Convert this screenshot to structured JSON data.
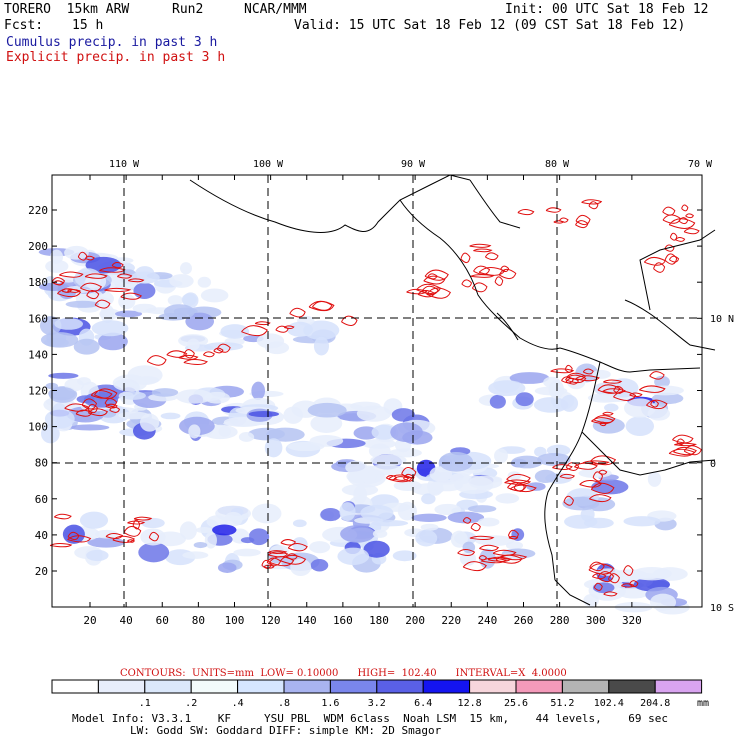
{
  "header": {
    "model": "TORERO  15km ARW",
    "run": "Run2",
    "org": "NCAR/MMM",
    "init": "Init: 00 UTC Sat 18 Feb 12",
    "fcst_label": "Fcst:",
    "fcst_value": "15 h",
    "valid": "Valid: 15 UTC Sat 18 Feb 12 (09 CST Sat 18 Feb 12)",
    "cumulus": "Cumulus precip. in past 3 h",
    "explicit": "Explicit precip. in past 3 h"
  },
  "map": {
    "lon_labels": [
      "110 W",
      "100 W",
      "90 W",
      "80 W",
      "70 W"
    ],
    "lat_labels": [
      "10 N",
      "0",
      "10 S"
    ],
    "x_ticks": [
      "20",
      "40",
      "60",
      "80",
      "100",
      "120",
      "140",
      "160",
      "180",
      "200",
      "220",
      "240",
      "260",
      "280",
      "300",
      "320"
    ],
    "y_ticks": [
      "20",
      "40",
      "60",
      "80",
      "100",
      "120",
      "140",
      "160",
      "180",
      "200",
      "220"
    ]
  },
  "contours": {
    "text": "CONTOURS:  UNITS=mm  LOW= 0.10000      HIGH=  102.40      INTERVAL=X  4.0000"
  },
  "legend": {
    "labels": [
      ".1",
      ".2",
      ".4",
      ".8",
      "1.6",
      "3.2",
      "6.4",
      "12.8",
      "25.6",
      "51.2",
      "102.4",
      "204.8"
    ],
    "unit": "mm",
    "colors": [
      "#ffffff",
      "#e8eefc",
      "#dbe8fb",
      "#f3fbfb",
      "#d6e6ff",
      "#a9b4f0",
      "#7a86ec",
      "#5a60e6",
      "#1414f0",
      "#f7d6dc",
      "#f49aba",
      "#b4b4b4",
      "#4a4a4a",
      "#d9a4f0"
    ]
  },
  "footer": {
    "line1": "Model Info: V3.3.1    KF     YSU PBL  WDM 6class  Noah LSM  15 km,    44 levels,    69 sec",
    "line2": "LW: Godd SW: Goddard DIFF: simple KM: 2D Smagor"
  }
}
